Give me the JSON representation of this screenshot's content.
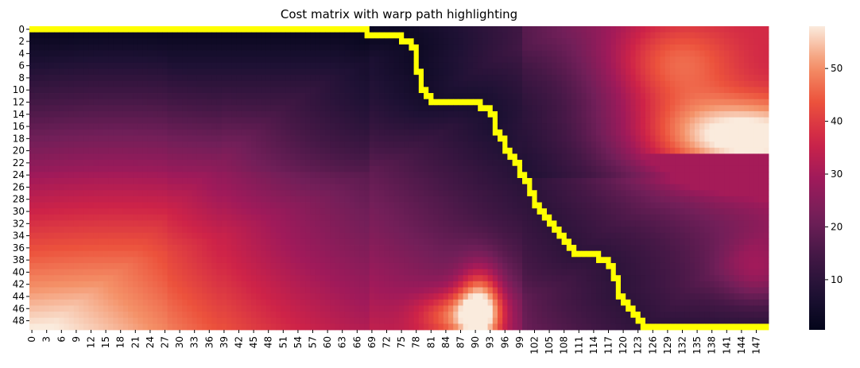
{
  "chart_data": {
    "type": "heatmap",
    "title": "Cost matrix with warp path highlighting",
    "xlabel": "",
    "ylabel": "",
    "n_cols": 150,
    "n_rows": 50,
    "x_tick_labels": [
      "0",
      "3",
      "6",
      "9",
      "12",
      "15",
      "18",
      "21",
      "24",
      "27",
      "30",
      "33",
      "36",
      "39",
      "42",
      "45",
      "48",
      "51",
      "54",
      "57",
      "60",
      "63",
      "66",
      "69",
      "72",
      "75",
      "78",
      "81",
      "84",
      "87",
      "90",
      "93",
      "96",
      "99",
      "102",
      "105",
      "108",
      "111",
      "114",
      "117",
      "120",
      "123",
      "126",
      "129",
      "132",
      "135",
      "138",
      "141",
      "144",
      "147"
    ],
    "y_tick_labels": [
      "0",
      "2",
      "4",
      "6",
      "8",
      "10",
      "12",
      "14",
      "16",
      "18",
      "20",
      "22",
      "24",
      "26",
      "28",
      "30",
      "32",
      "34",
      "36",
      "38",
      "40",
      "42",
      "44",
      "46",
      "48"
    ],
    "colorbar": {
      "colormap": "rocket",
      "min": 0.5,
      "max": 58,
      "ticks": [
        "10",
        "20",
        "30",
        "40",
        "50"
      ]
    },
    "warp_path_color": "#ffff00",
    "warp_path": [
      [
        0,
        0
      ],
      [
        68,
        0
      ],
      [
        68,
        1
      ],
      [
        75,
        1
      ],
      [
        75,
        2
      ],
      [
        77,
        2
      ],
      [
        77,
        3
      ],
      [
        78,
        3
      ],
      [
        78,
        7
      ],
      [
        79,
        7
      ],
      [
        79,
        10
      ],
      [
        80,
        10
      ],
      [
        80,
        11
      ],
      [
        81,
        11
      ],
      [
        81,
        12
      ],
      [
        91,
        12
      ],
      [
        91,
        13
      ],
      [
        93,
        13
      ],
      [
        93,
        14
      ],
      [
        94,
        14
      ],
      [
        94,
        17
      ],
      [
        95,
        17
      ],
      [
        95,
        18
      ],
      [
        96,
        18
      ],
      [
        96,
        20
      ],
      [
        97,
        20
      ],
      [
        97,
        21
      ],
      [
        98,
        21
      ],
      [
        98,
        22
      ],
      [
        99,
        22
      ],
      [
        99,
        24
      ],
      [
        100,
        24
      ],
      [
        100,
        25
      ],
      [
        101,
        25
      ],
      [
        101,
        27
      ],
      [
        102,
        27
      ],
      [
        102,
        29
      ],
      [
        103,
        29
      ],
      [
        103,
        30
      ],
      [
        104,
        30
      ],
      [
        104,
        31
      ],
      [
        105,
        31
      ],
      [
        105,
        32
      ],
      [
        106,
        32
      ],
      [
        106,
        33
      ],
      [
        107,
        33
      ],
      [
        107,
        34
      ],
      [
        108,
        34
      ],
      [
        108,
        35
      ],
      [
        109,
        35
      ],
      [
        109,
        36
      ],
      [
        110,
        36
      ],
      [
        110,
        37
      ],
      [
        115,
        37
      ],
      [
        115,
        38
      ],
      [
        117,
        38
      ],
      [
        117,
        39
      ],
      [
        118,
        39
      ],
      [
        118,
        41
      ],
      [
        119,
        41
      ],
      [
        119,
        44
      ],
      [
        120,
        44
      ],
      [
        120,
        45
      ],
      [
        121,
        45
      ],
      [
        121,
        46
      ],
      [
        122,
        46
      ],
      [
        122,
        47
      ],
      [
        123,
        47
      ],
      [
        123,
        48
      ],
      [
        124,
        48
      ],
      [
        124,
        49
      ],
      [
        149,
        49
      ]
    ]
  }
}
